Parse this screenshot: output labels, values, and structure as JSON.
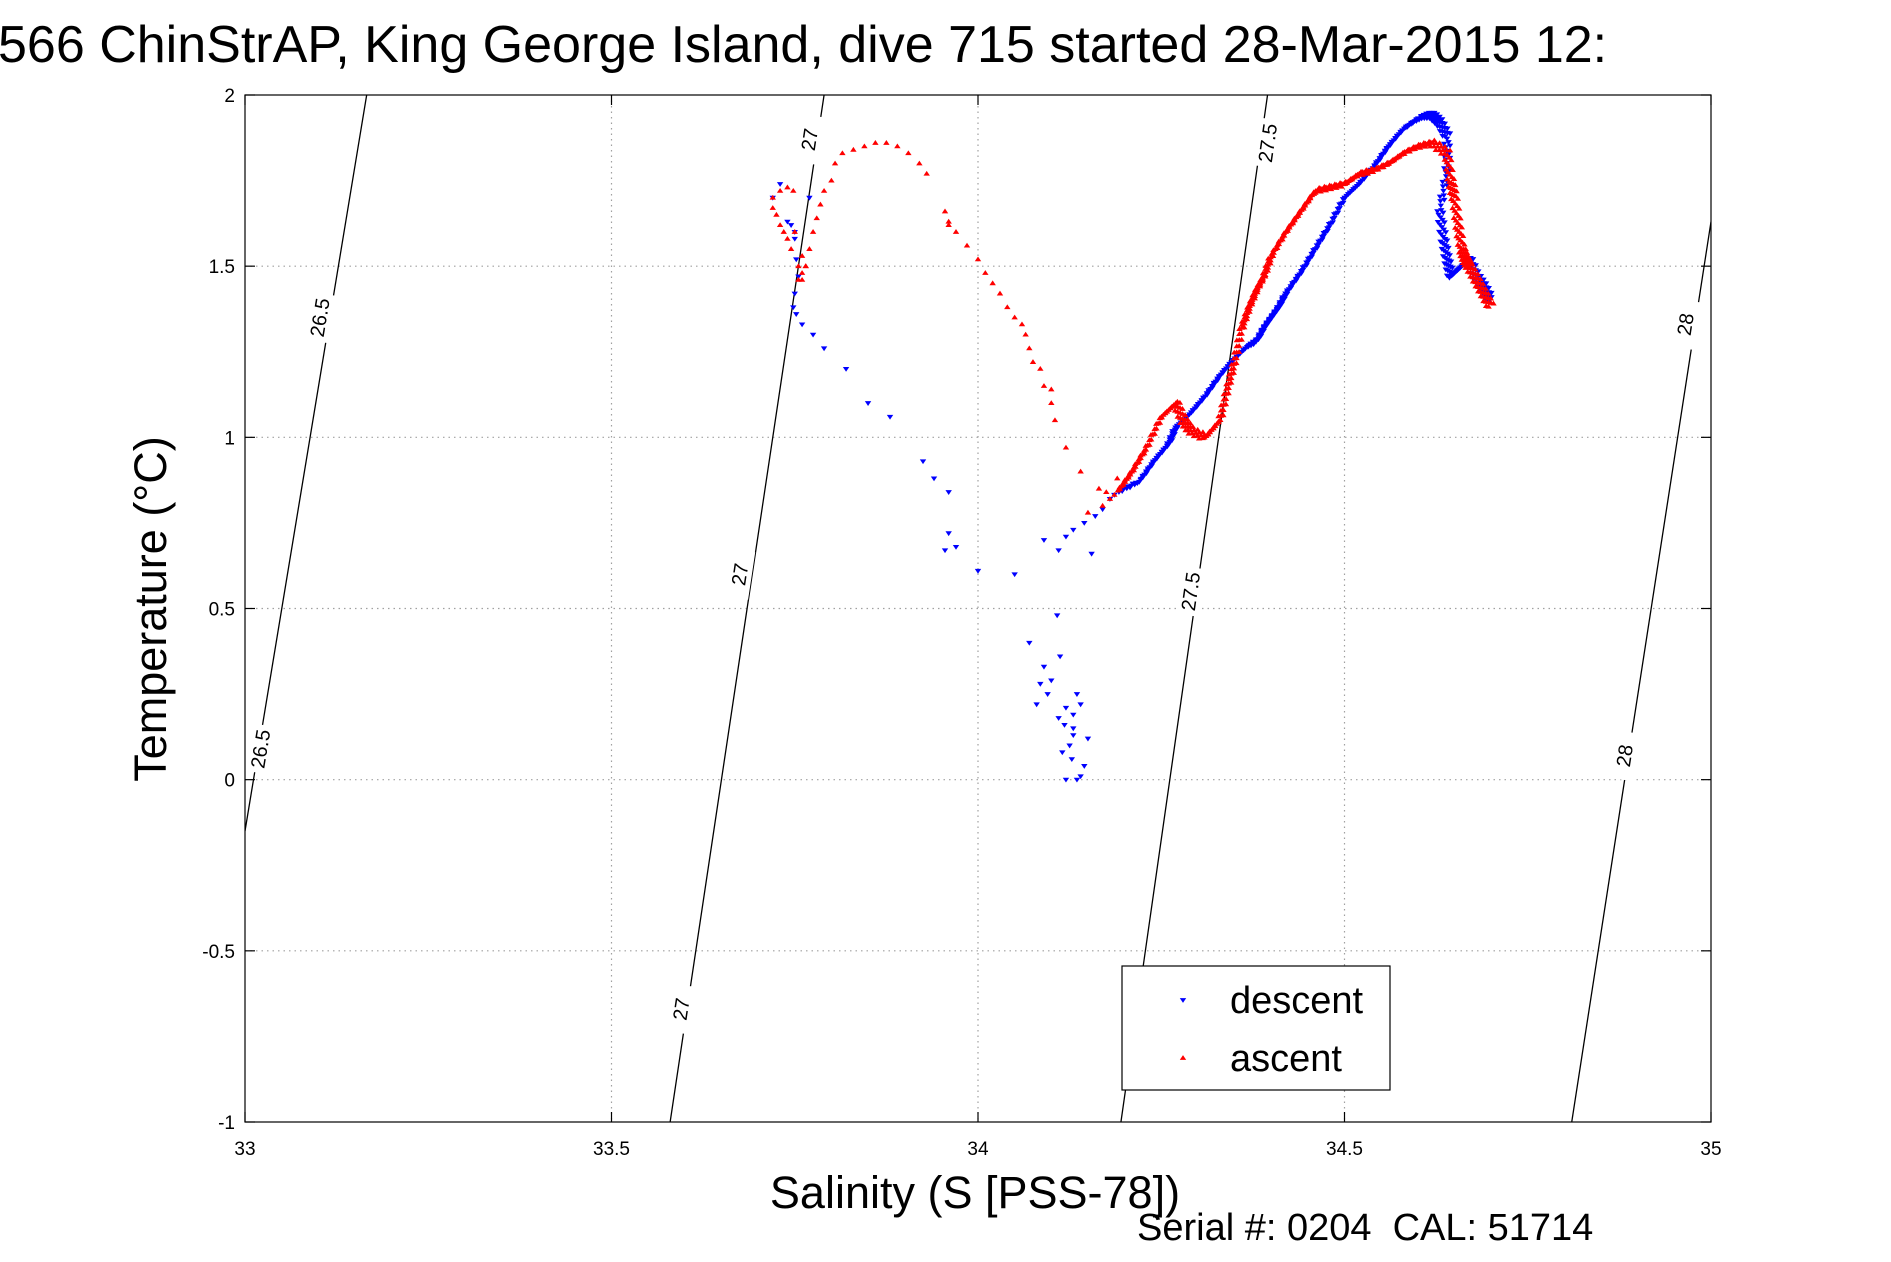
{
  "chart_data": {
    "type": "scatter",
    "title": "566 ChinStrAP, King George Island, dive 715 started 28-Mar-2015 12:",
    "xlabel": "Salinity (S [PSS-78])",
    "ylabel": "Temperature (°C)",
    "xlim": [
      33,
      35
    ],
    "ylim": [
      -1,
      2
    ],
    "x_ticks": [
      33,
      33.5,
      34,
      34.5,
      35
    ],
    "x_tick_labels": [
      "33",
      "33.5",
      "34",
      "34.5",
      "35"
    ],
    "y_ticks": [
      -1,
      -0.5,
      0,
      0.5,
      1,
      1.5,
      2
    ],
    "y_tick_labels": [
      "-1",
      "-0.5",
      "0",
      "0.5",
      "1",
      "1.5",
      "2"
    ],
    "grid": true,
    "legend_position": "bottom-right",
    "footer": "Serial #: 0204  CAL: 51714",
    "density_contours": [
      {
        "label": "26.5",
        "points": [
          [
            33.0,
            -0.15
          ],
          [
            33.166,
            2.0
          ]
        ],
        "label_positions": [
          [
            33.102,
            1.35
          ],
          [
            33.021,
            0.09
          ]
        ]
      },
      {
        "label": "27",
        "points": [
          [
            33.58,
            -1.0
          ],
          [
            33.79,
            2.0
          ]
        ],
        "label_positions": [
          [
            33.77,
            1.87
          ],
          [
            33.675,
            0.6
          ],
          [
            33.595,
            -0.67
          ]
        ]
      },
      {
        "label": "27.5",
        "points": [
          [
            34.195,
            -1.0
          ],
          [
            34.395,
            2.0
          ]
        ],
        "label_positions": [
          [
            34.395,
            1.86
          ],
          [
            34.29,
            0.55
          ]
        ]
      },
      {
        "label": "28",
        "points": [
          [
            34.81,
            -1.0
          ],
          [
            35.0,
            1.63
          ]
        ],
        "label_positions": [
          [
            34.965,
            1.33
          ],
          [
            34.882,
            0.07
          ]
        ]
      }
    ],
    "series": [
      {
        "name": "descent",
        "color": "#0000ff",
        "marker": "triangle-down",
        "x": [
          34.12,
          34.135,
          34.14,
          34.145,
          34.15,
          34.125,
          34.13,
          34.13,
          34.14,
          34.135,
          34.12,
          34.118,
          34.13,
          34.128,
          34.115,
          34.11,
          34.095,
          34.1,
          34.112,
          34.108,
          34.09,
          34.085,
          34.08,
          34.11,
          34.12,
          34.13,
          34.145,
          34.155,
          34.16,
          34.17,
          34.18,
          34.09,
          34.07,
          34.05,
          34.0,
          33.97,
          33.96,
          33.955,
          33.96,
          33.94,
          33.925,
          33.88,
          33.85,
          33.82,
          33.79,
          33.775,
          33.76,
          33.752,
          33.748,
          33.75,
          33.755,
          33.752,
          33.75,
          33.75,
          33.745,
          33.74,
          33.72,
          33.73,
          33.77
        ],
        "y": [
          0.0,
          0.0,
          0.01,
          0.04,
          0.12,
          0.1,
          0.15,
          0.19,
          0.22,
          0.25,
          0.21,
          0.16,
          0.13,
          0.06,
          0.08,
          0.18,
          0.25,
          0.29,
          0.36,
          0.48,
          0.33,
          0.28,
          0.22,
          0.67,
          0.71,
          0.73,
          0.75,
          0.66,
          0.77,
          0.79,
          0.82,
          0.7,
          0.4,
          0.6,
          0.61,
          0.68,
          0.72,
          0.67,
          0.84,
          0.88,
          0.93,
          1.06,
          1.1,
          1.2,
          1.26,
          1.3,
          1.33,
          1.36,
          1.38,
          1.42,
          1.47,
          1.52,
          1.58,
          1.6,
          1.62,
          1.63,
          1.7,
          1.74,
          1.7
        ],
        "line": {
          "x": [
            34.19,
            34.22,
            34.24,
            34.26,
            34.27,
            34.29,
            34.31,
            34.33,
            34.35,
            34.37,
            34.38,
            34.39,
            34.4,
            34.41,
            34.42,
            34.44,
            34.46,
            34.48,
            34.5,
            34.52,
            34.54,
            34.56,
            34.58,
            34.6,
            34.61,
            34.62,
            34.63,
            34.64,
            34.64,
            34.63,
            34.635,
            34.64,
            34.645,
            34.66,
            34.67,
            34.68,
            34.69,
            34.7
          ],
          "y": [
            0.84,
            0.87,
            0.93,
            0.98,
            1.03,
            1.07,
            1.12,
            1.18,
            1.23,
            1.27,
            1.28,
            1.32,
            1.35,
            1.38,
            1.42,
            1.48,
            1.55,
            1.62,
            1.7,
            1.74,
            1.79,
            1.85,
            1.9,
            1.93,
            1.94,
            1.94,
            1.92,
            1.88,
            1.78,
            1.66,
            1.58,
            1.52,
            1.47,
            1.5,
            1.52,
            1.47,
            1.44,
            1.4
          ]
        }
      },
      {
        "name": "ascent",
        "color": "#ff0000",
        "marker": "triangle-up",
        "x": [
          34.18,
          34.165,
          34.17,
          34.175,
          34.19,
          34.15,
          34.14,
          34.12,
          34.105,
          34.1,
          34.1,
          34.09,
          34.085,
          34.075,
          34.07,
          34.065,
          34.06,
          34.05,
          34.04,
          34.03,
          34.02,
          34.01,
          34.0,
          33.985,
          33.97,
          33.96,
          33.955,
          33.96,
          33.93,
          33.92,
          33.905,
          33.89,
          33.875,
          33.86,
          33.845,
          33.83,
          33.815,
          33.805,
          33.8,
          33.79,
          33.785,
          33.78,
          33.775,
          33.77,
          33.765,
          33.76,
          33.755,
          33.745,
          33.74,
          33.735,
          33.73,
          33.725,
          33.72,
          33.72,
          33.73,
          33.74,
          33.748,
          33.75,
          33.76,
          33.765,
          33.76,
          33.755
        ],
        "y": [
          0.82,
          0.85,
          0.8,
          0.84,
          0.88,
          0.78,
          0.9,
          0.97,
          1.05,
          1.1,
          1.14,
          1.15,
          1.2,
          1.22,
          1.26,
          1.3,
          1.33,
          1.35,
          1.38,
          1.42,
          1.45,
          1.48,
          1.52,
          1.56,
          1.6,
          1.63,
          1.66,
          1.62,
          1.77,
          1.8,
          1.83,
          1.85,
          1.86,
          1.86,
          1.85,
          1.84,
          1.83,
          1.8,
          1.75,
          1.72,
          1.68,
          1.64,
          1.6,
          1.55,
          1.5,
          1.46,
          1.5,
          1.55,
          1.58,
          1.6,
          1.62,
          1.65,
          1.67,
          1.7,
          1.72,
          1.73,
          1.72,
          1.6,
          1.53,
          1.5,
          1.48,
          1.46
        ],
        "line": {
          "x": [
            34.19,
            34.21,
            34.23,
            34.25,
            34.27,
            34.28,
            34.29,
            34.31,
            34.33,
            34.34,
            34.35,
            34.36,
            34.37,
            34.38,
            34.39,
            34.4,
            34.42,
            34.44,
            34.46,
            34.48,
            34.5,
            34.52,
            34.54,
            34.56,
            34.58,
            34.6,
            34.62,
            34.64,
            34.645,
            34.65,
            34.655,
            34.66,
            34.665,
            34.67,
            34.68,
            34.69,
            34.7
          ],
          "y": [
            0.84,
            0.9,
            0.97,
            1.06,
            1.1,
            1.05,
            1.02,
            1.0,
            1.05,
            1.14,
            1.22,
            1.32,
            1.38,
            1.43,
            1.47,
            1.53,
            1.6,
            1.66,
            1.72,
            1.73,
            1.74,
            1.77,
            1.78,
            1.8,
            1.83,
            1.85,
            1.86,
            1.83,
            1.75,
            1.7,
            1.62,
            1.55,
            1.52,
            1.5,
            1.46,
            1.42,
            1.38
          ]
        }
      }
    ]
  }
}
